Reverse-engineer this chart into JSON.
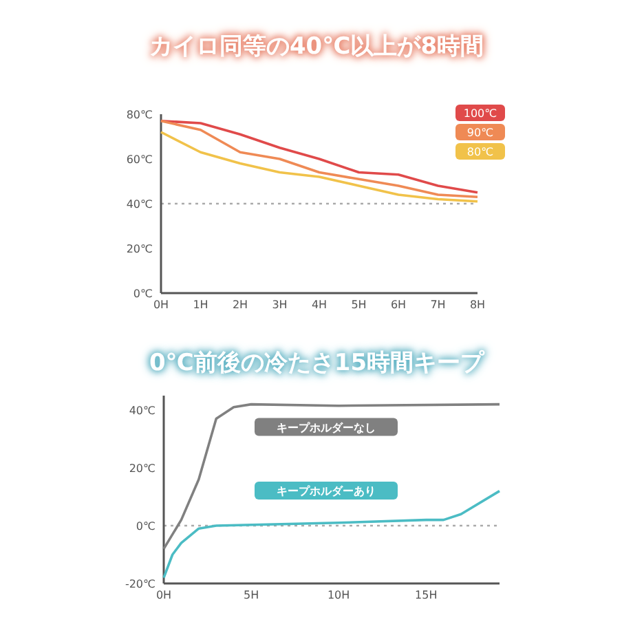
{
  "chart_data": [
    {
      "type": "line",
      "title": "カイロ同等の40℃以上が8時間",
      "x": [
        0,
        1,
        2,
        3,
        4,
        5,
        6,
        7,
        8
      ],
      "series": [
        {
          "name": "100℃",
          "color": "#e04a4a",
          "values": [
            77,
            76,
            71,
            65,
            60,
            54,
            53,
            48,
            45
          ]
        },
        {
          "name": "90℃",
          "color": "#ef8a55",
          "values": [
            77,
            73,
            63,
            60,
            54,
            51,
            48,
            44,
            43
          ]
        },
        {
          "name": "80℃",
          "color": "#f1c24a",
          "values": [
            72,
            63,
            58,
            54,
            52,
            48,
            44,
            42,
            41
          ]
        }
      ],
      "xlim": [
        0,
        8
      ],
      "xticks": [
        {
          "value": 0,
          "label": "0H"
        },
        {
          "value": 1,
          "label": "1H"
        },
        {
          "value": 2,
          "label": "2H"
        },
        {
          "value": 3,
          "label": "3H"
        },
        {
          "value": 4,
          "label": "4H"
        },
        {
          "value": 5,
          "label": "5H"
        },
        {
          "value": 6,
          "label": "6H"
        },
        {
          "value": 7,
          "label": "7H"
        },
        {
          "value": 8,
          "label": "8H"
        }
      ],
      "ylim": [
        0,
        80
      ],
      "yticks": [
        {
          "value": 0,
          "label": "0℃"
        },
        {
          "value": 20,
          "label": "20℃"
        },
        {
          "value": 40,
          "label": "40℃"
        },
        {
          "value": 60,
          "label": "60℃"
        },
        {
          "value": 80,
          "label": "80℃"
        }
      ],
      "ref_lines": [
        {
          "axis": "y",
          "value": 40,
          "color": "#aaaaaa",
          "line_style": "dotted"
        }
      ],
      "legend": "top right",
      "grid": false
    },
    {
      "type": "line",
      "title": "0℃前後の冷たさ15時間キープ",
      "series": [
        {
          "name": "キープホルダーなし",
          "color": "#808080",
          "x": [
            0,
            1,
            2,
            3,
            4,
            5,
            10,
            19.2
          ],
          "values": [
            -8,
            2,
            16,
            37,
            41,
            42,
            41.5,
            42
          ]
        },
        {
          "name": "キープホルダーあり",
          "color": "#4bbcc4",
          "x": [
            0,
            0.5,
            1,
            2,
            3,
            10,
            15,
            16,
            17,
            19.2
          ],
          "values": [
            -18,
            -10,
            -6,
            -1,
            0,
            1,
            2,
            2,
            4,
            12
          ]
        }
      ],
      "xlim": [
        0,
        19.2
      ],
      "xticks": [
        {
          "value": 0,
          "label": "0H"
        },
        {
          "value": 5,
          "label": "5H"
        },
        {
          "value": 10,
          "label": "10H"
        },
        {
          "value": 15,
          "label": "15H"
        }
      ],
      "ylim": [
        -20,
        45
      ],
      "yticks": [
        {
          "value": -20,
          "label": "-20℃"
        },
        {
          "value": 0,
          "label": "0℃"
        },
        {
          "value": 20,
          "label": "20℃"
        },
        {
          "value": 40,
          "label": "40℃"
        }
      ],
      "ref_lines": [
        {
          "axis": "y",
          "value": 0,
          "color": "#aaaaaa",
          "line_style": "dotted"
        }
      ],
      "legend": false,
      "grid": false
    }
  ]
}
